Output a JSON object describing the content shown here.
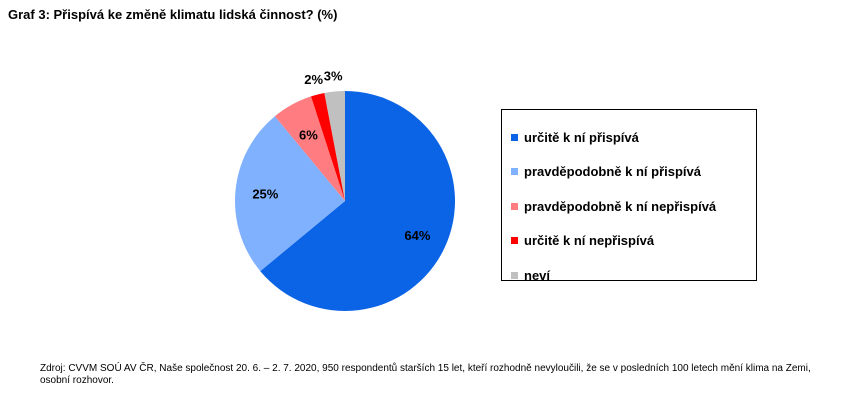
{
  "chart_data": {
    "type": "pie",
    "title": "Graf 3: Přispívá ke změně klimatu lidská činnost? (%)",
    "categories": [
      "určitě k ní přispívá",
      "pravděpodobně k ní přispívá",
      "pravděpodobně k ní nepřispívá",
      "určitě k ní nepřispívá",
      "neví"
    ],
    "values": [
      64,
      25,
      6,
      2,
      3
    ],
    "labels": [
      "64%",
      "25%",
      "6%",
      "2%",
      "3%"
    ],
    "colors": [
      "#0b63e5",
      "#80b1ff",
      "#ff7c80",
      "#ff0000",
      "#c0c0c0"
    ],
    "legend_position": "right"
  },
  "source_note": "Zdroj: CVVM SOÚ AV ČR, Naše společnost 20. 6. – 2. 7. 2020, 950 respondentů starších 15 let, kteří rozhodně nevyloučili, že se v posledních 100 letech mění klima na Zemi, osobní rozhovor."
}
